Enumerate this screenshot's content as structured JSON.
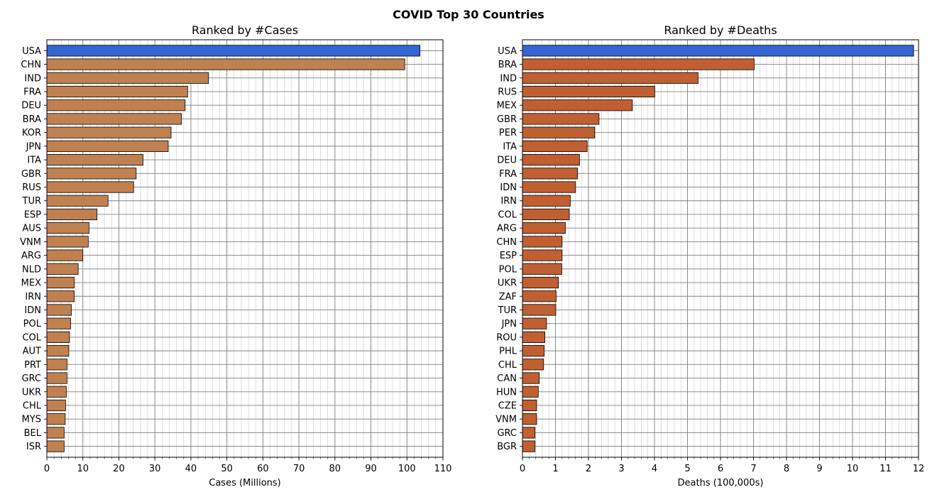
{
  "figure_title": "COVID Top 30 Countries",
  "colors": {
    "highlight": "#3465d0",
    "cases_bar": "#c08050",
    "deaths_bar": "#c05f32",
    "edge": "#000000",
    "grid_major": "#808080",
    "grid_minor": "#c8c8c8"
  },
  "chart_data": [
    {
      "type": "bar",
      "orientation": "horizontal",
      "title": "Ranked by #Cases",
      "xlabel": "Cases (Millions)",
      "ylabel": "",
      "xlim": [
        0,
        110
      ],
      "xticks": [
        0,
        10,
        20,
        30,
        40,
        50,
        60,
        70,
        80,
        90,
        100,
        110
      ],
      "minor_step": 2,
      "grid": true,
      "highlight_first": true,
      "categories": [
        "USA",
        "CHN",
        "IND",
        "FRA",
        "DEU",
        "BRA",
        "KOR",
        "JPN",
        "ITA",
        "GBR",
        "RUS",
        "TUR",
        "ESP",
        "AUS",
        "VNM",
        "ARG",
        "NLD",
        "MEX",
        "IRN",
        "IDN",
        "POL",
        "COL",
        "AUT",
        "PRT",
        "GRC",
        "UKR",
        "CHL",
        "MYS",
        "BEL",
        "ISR"
      ],
      "values": [
        103.6,
        99.4,
        44.9,
        39.1,
        38.4,
        37.4,
        34.5,
        33.7,
        26.7,
        24.8,
        24.1,
        17.0,
        13.9,
        11.7,
        11.5,
        10.0,
        8.7,
        7.6,
        7.6,
        6.8,
        6.6,
        6.3,
        6.1,
        5.6,
        5.6,
        5.4,
        5.2,
        5.1,
        4.8,
        4.8
      ]
    },
    {
      "type": "bar",
      "orientation": "horizontal",
      "title": "Ranked by #Deaths",
      "xlabel": "Deaths (100,000s)",
      "ylabel": "",
      "xlim": [
        0,
        12
      ],
      "xticks": [
        0,
        1,
        2,
        3,
        4,
        5,
        6,
        7,
        8,
        9,
        10,
        11,
        12
      ],
      "minor_step": 0.2,
      "grid": true,
      "highlight_first": true,
      "categories": [
        "USA",
        "BRA",
        "IND",
        "RUS",
        "MEX",
        "GBR",
        "PER",
        "ITA",
        "DEU",
        "FRA",
        "IDN",
        "IRN",
        "COL",
        "ARG",
        "CHN",
        "ESP",
        "POL",
        "UKR",
        "ZAF",
        "TUR",
        "JPN",
        "ROU",
        "PHL",
        "CHL",
        "CAN",
        "HUN",
        "CZE",
        "VNM",
        "GRC",
        "BGR"
      ],
      "values": [
        11.85,
        7.02,
        5.32,
        4.01,
        3.33,
        2.32,
        2.19,
        1.96,
        1.73,
        1.67,
        1.61,
        1.45,
        1.42,
        1.3,
        1.2,
        1.2,
        1.19,
        1.09,
        1.02,
        1.01,
        0.73,
        0.68,
        0.66,
        0.64,
        0.51,
        0.48,
        0.43,
        0.43,
        0.38,
        0.38
      ]
    }
  ]
}
